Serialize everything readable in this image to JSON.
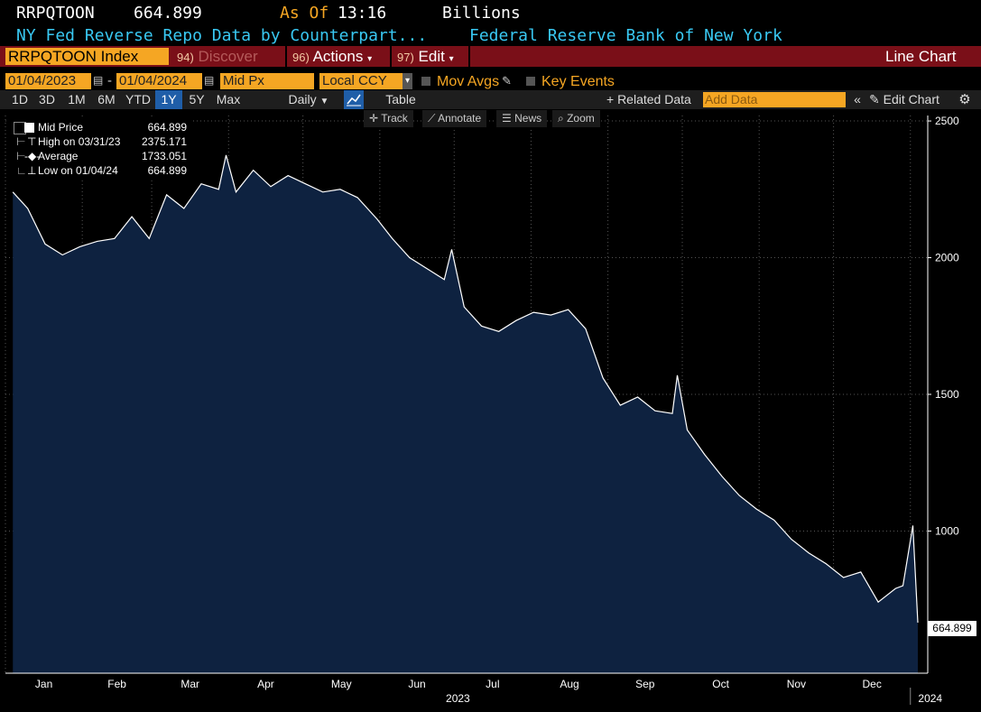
{
  "header": {
    "ticker": "RRPQTOON",
    "price": "664.899",
    "as_of_label": "As Of",
    "time": "13:16",
    "units": "Billions",
    "description": "NY Fed Reverse Repo Data by Counterpart...",
    "source": "Federal Reserve Bank of New York"
  },
  "menubar": {
    "security": "RRPQTOON Index",
    "discover_num": "94)",
    "discover": "Discover",
    "actions_num": "96)",
    "actions": "Actions",
    "edit_num": "97)",
    "edit": "Edit",
    "view": "Line Chart"
  },
  "settings": {
    "start_date": "01/04/2023",
    "end_date": "01/04/2024",
    "field": "Mid Px",
    "currency": "Local CCY",
    "mov_avgs": "Mov Avgs",
    "key_events": "Key Events"
  },
  "ranges": [
    "1D",
    "3D",
    "1M",
    "6M",
    "YTD",
    "1Y",
    "5Y",
    "Max"
  ],
  "active_range": "1Y",
  "periodicity": "Daily",
  "table_label": "Table",
  "related_data": "+ Related Data",
  "add_data_placeholder": "Add Data",
  "edit_chart": "Edit Chart",
  "tools": {
    "track": "Track",
    "annotate": "Annotate",
    "news": "News",
    "zoom": "Zoom"
  },
  "legend": {
    "mid_label": "Mid Price",
    "mid_value": "664.899",
    "high_label": "High on 03/31/23",
    "high_value": "2375.171",
    "avg_label": "Average",
    "avg_value": "1733.051",
    "low_label": "Low on 01/04/24",
    "low_value": "664.899"
  },
  "last_value_tag": "664.899",
  "colors": {
    "accent": "#f5a623",
    "title_cyan": "#39c8f2",
    "menubar": "#7a0f18",
    "area_fill": "#0e2240",
    "line": "#ffffff"
  },
  "chart_data": {
    "type": "area",
    "series_name": "Mid Price",
    "units": "Billions",
    "y_ticks": [
      1000,
      1500,
      2000,
      2500
    ],
    "ylim": [
      480,
      2520
    ],
    "x_tick_labels": [
      "Jan",
      "Feb",
      "Mar",
      "Apr",
      "May",
      "Jun",
      "Jul",
      "Aug",
      "Sep",
      "Oct",
      "Nov",
      "Dec"
    ],
    "year_labels": [
      "2023",
      "2024"
    ],
    "grid": true,
    "x": [
      "2023-01-04",
      "2023-01-10",
      "2023-01-17",
      "2023-01-24",
      "2023-01-31",
      "2023-02-07",
      "2023-02-14",
      "2023-02-21",
      "2023-02-28",
      "2023-03-07",
      "2023-03-14",
      "2023-03-21",
      "2023-03-28",
      "2023-03-31",
      "2023-04-04",
      "2023-04-11",
      "2023-04-18",
      "2023-04-25",
      "2023-05-02",
      "2023-05-09",
      "2023-05-16",
      "2023-05-23",
      "2023-05-31",
      "2023-06-06",
      "2023-06-13",
      "2023-06-20",
      "2023-06-27",
      "2023-06-30",
      "2023-07-05",
      "2023-07-12",
      "2023-07-19",
      "2023-07-26",
      "2023-08-02",
      "2023-08-09",
      "2023-08-16",
      "2023-08-23",
      "2023-08-30",
      "2023-09-06",
      "2023-09-13",
      "2023-09-20",
      "2023-09-27",
      "2023-09-29",
      "2023-10-03",
      "2023-10-10",
      "2023-10-17",
      "2023-10-24",
      "2023-10-31",
      "2023-11-07",
      "2023-11-14",
      "2023-11-21",
      "2023-11-28",
      "2023-12-05",
      "2023-12-12",
      "2023-12-19",
      "2023-12-26",
      "2023-12-29",
      "2024-01-02",
      "2024-01-04"
    ],
    "values": [
      2240,
      2180,
      2050,
      2010,
      2040,
      2060,
      2070,
      2150,
      2070,
      2230,
      2180,
      2270,
      2250,
      2375,
      2240,
      2320,
      2260,
      2300,
      2270,
      2240,
      2250,
      2220,
      2140,
      2070,
      2000,
      1960,
      1920,
      2030,
      1820,
      1750,
      1730,
      1770,
      1800,
      1790,
      1810,
      1740,
      1560,
      1460,
      1490,
      1440,
      1430,
      1570,
      1370,
      1280,
      1200,
      1130,
      1080,
      1040,
      970,
      920,
      880,
      830,
      850,
      740,
      790,
      800,
      1020,
      665
    ]
  }
}
